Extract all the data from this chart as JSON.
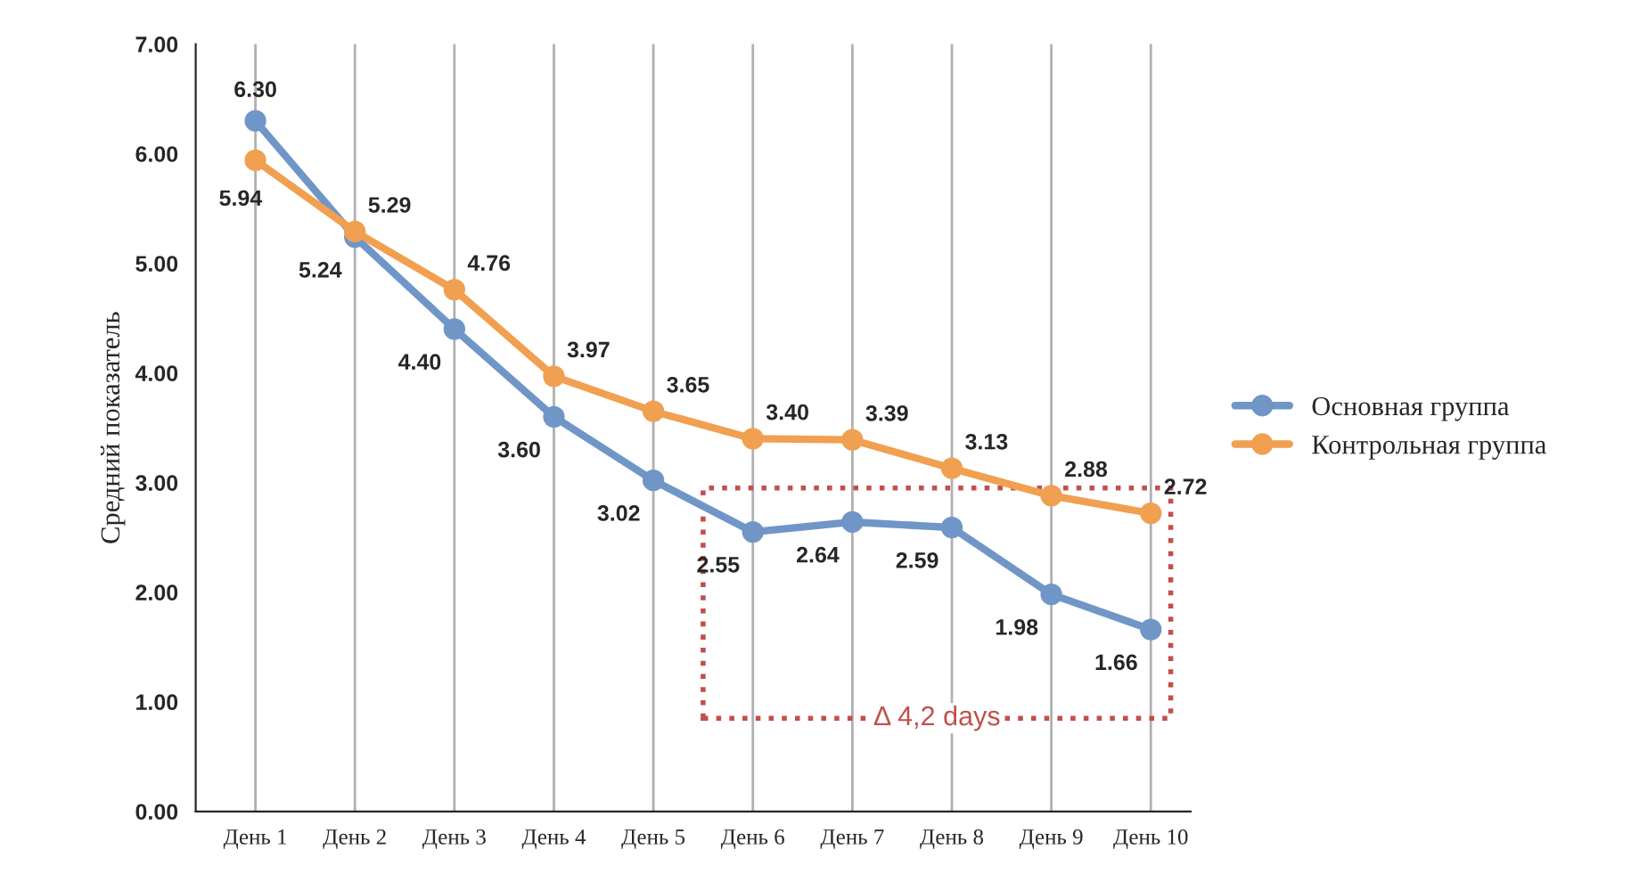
{
  "chart_data": {
    "type": "line",
    "ylabel": "Средний показатель",
    "categories": [
      "День 1",
      "День 2",
      "День 3",
      "День 4",
      "День 5",
      "День 6",
      "День 7",
      "День 8",
      "День 9",
      "День 10"
    ],
    "series": [
      {
        "name": "Основная группа",
        "color": "#7096c8",
        "values": [
          6.3,
          5.24,
          4.4,
          3.6,
          3.02,
          2.55,
          2.64,
          2.59,
          1.98,
          1.66
        ],
        "value_labels": [
          "6.30",
          "5.24",
          "4.40",
          "3.60",
          "3.02",
          "2.55",
          "2.64",
          "2.59",
          "1.98",
          "1.66"
        ]
      },
      {
        "name": "Контрольная группа",
        "color": "#f0a050",
        "values": [
          5.94,
          5.29,
          4.76,
          3.97,
          3.65,
          3.4,
          3.39,
          3.13,
          2.88,
          2.72
        ],
        "value_labels": [
          "5.94",
          "5.29",
          "4.76",
          "3.97",
          "3.65",
          "3.40",
          "3.39",
          "3.13",
          "2.88",
          "2.72"
        ]
      }
    ],
    "ylim": [
      0,
      7
    ],
    "yticks": [
      {
        "value": 0,
        "label": "0.00"
      },
      {
        "value": 1,
        "label": "1.00"
      },
      {
        "value": 2,
        "label": "2.00"
      },
      {
        "value": 3,
        "label": "3.00"
      },
      {
        "value": 4,
        "label": "4.00"
      },
      {
        "value": 5,
        "label": "5.00"
      },
      {
        "value": 6,
        "label": "6.00"
      },
      {
        "value": 7,
        "label": "7.00"
      }
    ],
    "grid": "x",
    "legend": "right",
    "marker": "circle",
    "line_style": "solid",
    "annotations": [
      "Δ 4,2 days"
    ]
  }
}
